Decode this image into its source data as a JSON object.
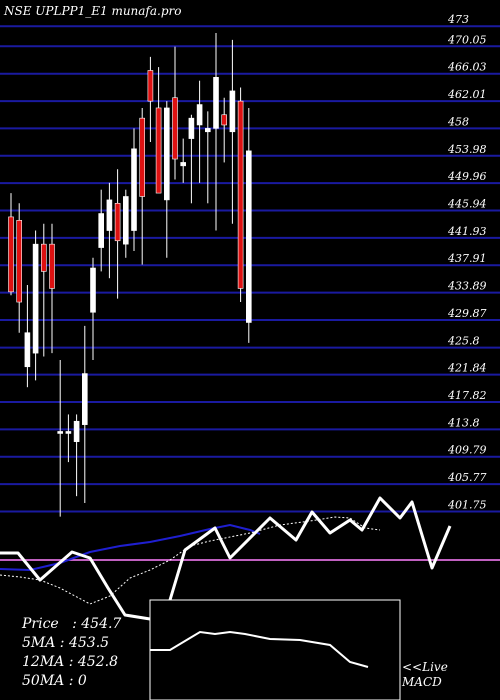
{
  "title": "NSE UPLPP1_E1 munafa.pro",
  "stats": {
    "price_label": "Price",
    "price_value": "454.7",
    "ma5_label": "5MA",
    "ma5_value": "453.5",
    "ma12_label": "12MA",
    "ma12_value": "452.8",
    "ma50_label": "50MA",
    "ma50_value": "0"
  },
  "macd_label": {
    "line1": "<<Live",
    "line2": "MACD"
  },
  "colors": {
    "up": "#ffffff",
    "down": "#dd1111",
    "grid": "#1a1aa0",
    "ma_blue": "#1f1fd0",
    "macd_zero": "#c060c0"
  },
  "chart_data": {
    "type": "candlestick",
    "y_ticks": [
      "473",
      "470.05",
      "466.03",
      "462.01",
      "458",
      "453.98",
      "449.96",
      "445.94",
      "441.93",
      "437.91",
      "433.89",
      "429.87",
      "425.8",
      "421.84",
      "417.82",
      "413.8",
      "409.79",
      "405.77",
      "401.75"
    ],
    "ylim": [
      400.5,
      474.5
    ],
    "candles": [
      {
        "o": 445.0,
        "h": 448.5,
        "l": 433.5,
        "c": 434.0
      },
      {
        "o": 444.5,
        "h": 447.0,
        "l": 428.0,
        "c": 432.5
      },
      {
        "o": 423.0,
        "h": 435.0,
        "l": 420.0,
        "c": 428.0
      },
      {
        "o": 425.0,
        "h": 443.0,
        "l": 421.0,
        "c": 441.0
      },
      {
        "o": 441.0,
        "h": 444.0,
        "l": 424.5,
        "c": 437.0
      },
      {
        "o": 441.0,
        "h": 444.0,
        "l": 425.0,
        "c": 434.5
      },
      {
        "o": 413.5,
        "h": 424.0,
        "l": 401.0,
        "c": 413.5
      },
      {
        "o": 413.5,
        "h": 416.0,
        "l": 409.0,
        "c": 413.5
      },
      {
        "o": 412.0,
        "h": 416.0,
        "l": 404.0,
        "c": 415.0
      },
      {
        "o": 414.5,
        "h": 429.0,
        "l": 403.0,
        "c": 422.0
      },
      {
        "o": 431.0,
        "h": 439.0,
        "l": 424.0,
        "c": 437.5
      },
      {
        "o": 440.5,
        "h": 449.0,
        "l": 437.0,
        "c": 445.5
      },
      {
        "o": 443.0,
        "h": 450.0,
        "l": 436.0,
        "c": 447.5
      },
      {
        "o": 447.0,
        "h": 452.0,
        "l": 433.0,
        "c": 441.5
      },
      {
        "o": 441.0,
        "h": 449.0,
        "l": 439.0,
        "c": 448.0
      },
      {
        "o": 443.0,
        "h": 458.0,
        "l": 440.0,
        "c": 455.0
      },
      {
        "o": 459.5,
        "h": 461.0,
        "l": 438.0,
        "c": 448.0
      },
      {
        "o": 466.5,
        "h": 468.5,
        "l": 456.0,
        "c": 462.0
      },
      {
        "o": 461.0,
        "h": 467.0,
        "l": 449.0,
        "c": 448.5
      },
      {
        "o": 447.5,
        "h": 462.0,
        "l": 439.0,
        "c": 461.0
      },
      {
        "o": 462.5,
        "h": 470.0,
        "l": 450.5,
        "c": 453.5
      },
      {
        "o": 452.5,
        "h": 456.5,
        "l": 450.0,
        "c": 453.0
      },
      {
        "o": 456.5,
        "h": 460.0,
        "l": 447.0,
        "c": 459.5
      },
      {
        "o": 458.5,
        "h": 465.0,
        "l": 450.0,
        "c": 461.5
      },
      {
        "o": 457.5,
        "h": 460.5,
        "l": 447.0,
        "c": 458.0
      },
      {
        "o": 458.0,
        "h": 472.0,
        "l": 443.0,
        "c": 465.5
      },
      {
        "o": 460.0,
        "h": 462.5,
        "l": 453.0,
        "c": 458.5
      },
      {
        "o": 457.5,
        "h": 471.0,
        "l": 444.0,
        "c": 463.5
      },
      {
        "o": 462.0,
        "h": 464.0,
        "l": 432.5,
        "c": 434.5
      },
      {
        "o": 429.5,
        "h": 461.0,
        "l": 426.5,
        "c": 454.7
      }
    ]
  }
}
